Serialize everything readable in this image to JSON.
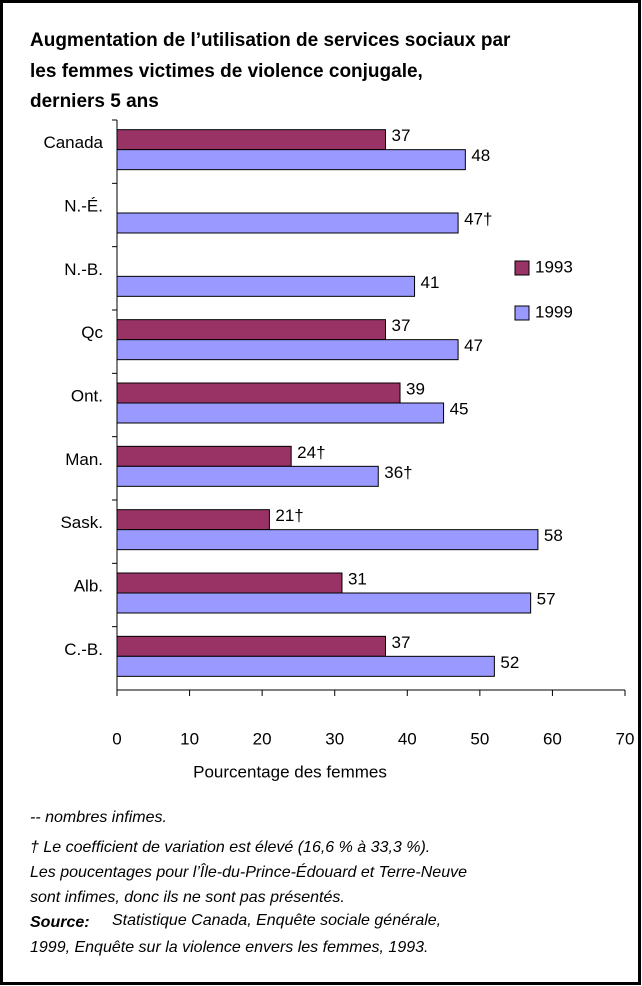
{
  "chart_data": {
    "type": "bar",
    "orientation": "horizontal",
    "title": [
      "Augmentation de l’utilisation de services sociaux par",
      "les femmes victimes de violence conjugale,",
      "derniers 5 ans"
    ],
    "categories": [
      "Canada",
      "N.-É.",
      "N.-B.",
      "Qc",
      "Ont.",
      "Man.",
      "Sask.",
      "Alb.",
      "C.-B."
    ],
    "series": [
      {
        "name": "1993",
        "color": "#993366",
        "values": [
          37,
          null,
          null,
          37,
          39,
          24,
          21,
          31,
          37
        ],
        "value_labels": [
          "37",
          null,
          null,
          "37",
          "39",
          "24†",
          "21†",
          "31",
          "37"
        ]
      },
      {
        "name": "1999",
        "color": "#9999ff",
        "values": [
          48,
          47,
          41,
          47,
          45,
          36,
          58,
          57,
          52
        ],
        "value_labels": [
          "48",
          "47†",
          "41",
          "47",
          "45",
          "36†",
          "58",
          "57",
          "52"
        ]
      }
    ],
    "xlim": [
      0,
      70
    ],
    "xticks": [
      0,
      10,
      20,
      30,
      40,
      50,
      60,
      70
    ],
    "xlabel": "Pourcentage des femmes",
    "legend": "right",
    "notes": [
      "-- nombres infimes.",
      "† Le coefficient de variation est élevé (16,6 % à  33,3 %).",
      "Les poucentages pour l’Île-du-Prince-Édouard et Terre-Neuve",
      "sont infimes, donc ils ne sont pas présentés."
    ],
    "source_label": "Source:",
    "source_text": [
      "Statistique Canada, Enquête sociale générale,",
      "1999, Enquête sur la violence envers les femmes, 1993."
    ]
  }
}
